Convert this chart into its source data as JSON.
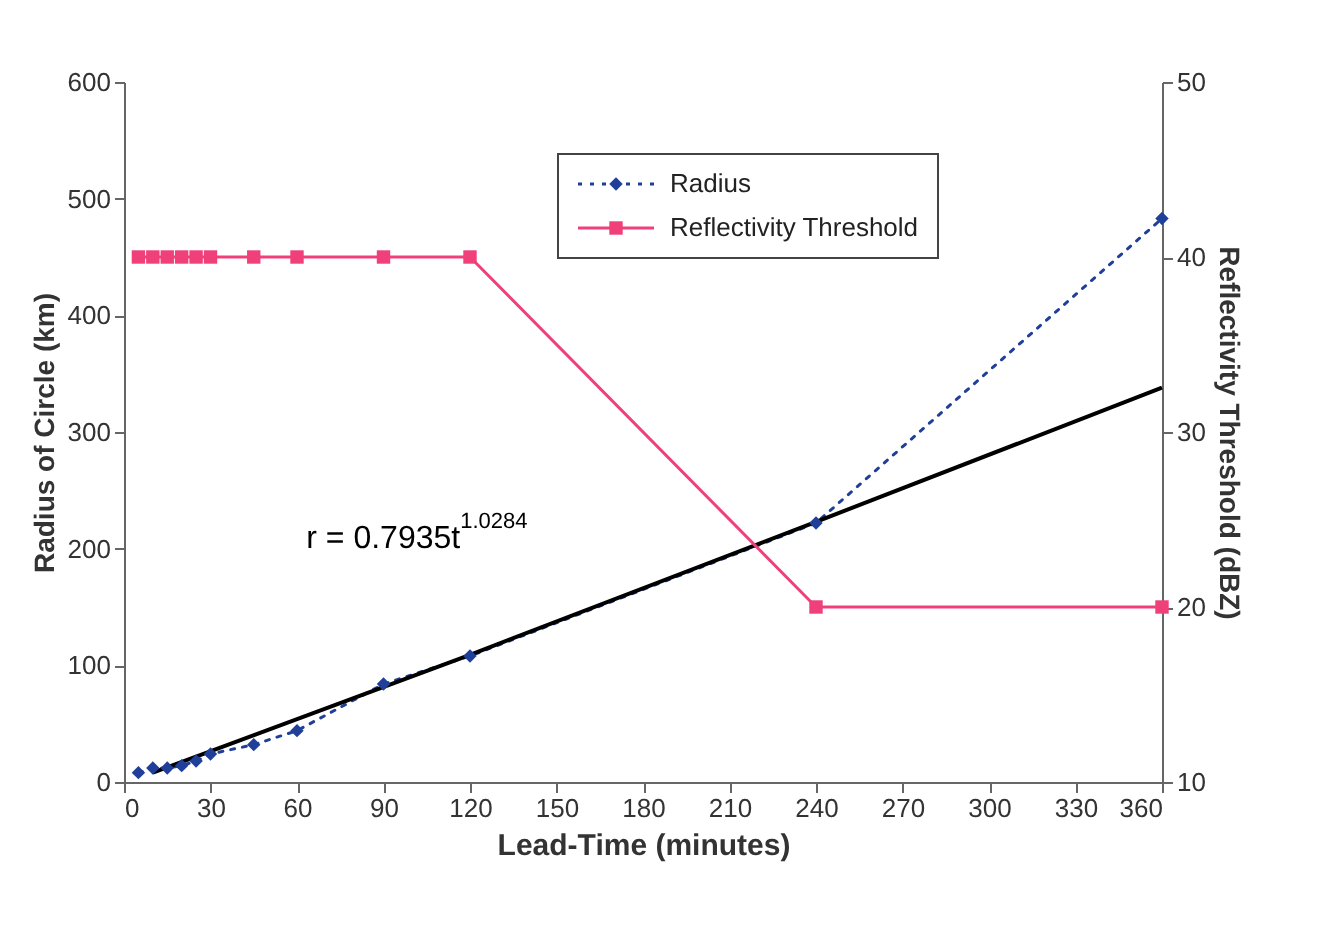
{
  "chart_data": {
    "type": "line",
    "xlabel": "Lead-Time (minutes)",
    "ylabel": "Radius of Circle (km)",
    "y2label": "Reflectivity Threshold (dBZ)",
    "x": [
      5,
      10,
      15,
      20,
      25,
      30,
      45,
      60,
      90,
      120,
      240,
      360
    ],
    "xlim": [
      0,
      360
    ],
    "xticks": [
      0,
      30,
      60,
      90,
      120,
      150,
      180,
      210,
      240,
      270,
      300,
      330,
      360
    ],
    "ylim": [
      0,
      600
    ],
    "yticks": [
      0,
      100,
      200,
      300,
      400,
      500,
      600
    ],
    "y2lim": [
      10,
      50
    ],
    "y2ticks": [
      10,
      20,
      30,
      40,
      50
    ],
    "series": [
      {
        "name": "Radius",
        "color": "#1f3f99",
        "values": [
          8,
          12,
          12,
          14,
          18,
          24,
          32,
          44,
          84,
          108,
          222,
          483
        ],
        "marker": "diamond",
        "line_style": "dotted"
      },
      {
        "name": "Reflectivity Threshold",
        "color": "#f0407a",
        "values": [
          40,
          40,
          40,
          40,
          40,
          40,
          40,
          40,
          40,
          40,
          20,
          20
        ],
        "axis": "y2",
        "marker": "square",
        "line_style": "solid"
      },
      {
        "type": "line",
        "color": "#000000",
        "x": [
          10,
          120,
          240,
          360
        ],
        "values": [
          8,
          109,
          223,
          338
        ],
        "marker": "none",
        "line_style": "solid"
      }
    ],
    "annotations": [
      "r = 0.7935t$^{1.0284}$"
    ],
    "grid": false,
    "legend": "top right"
  }
}
